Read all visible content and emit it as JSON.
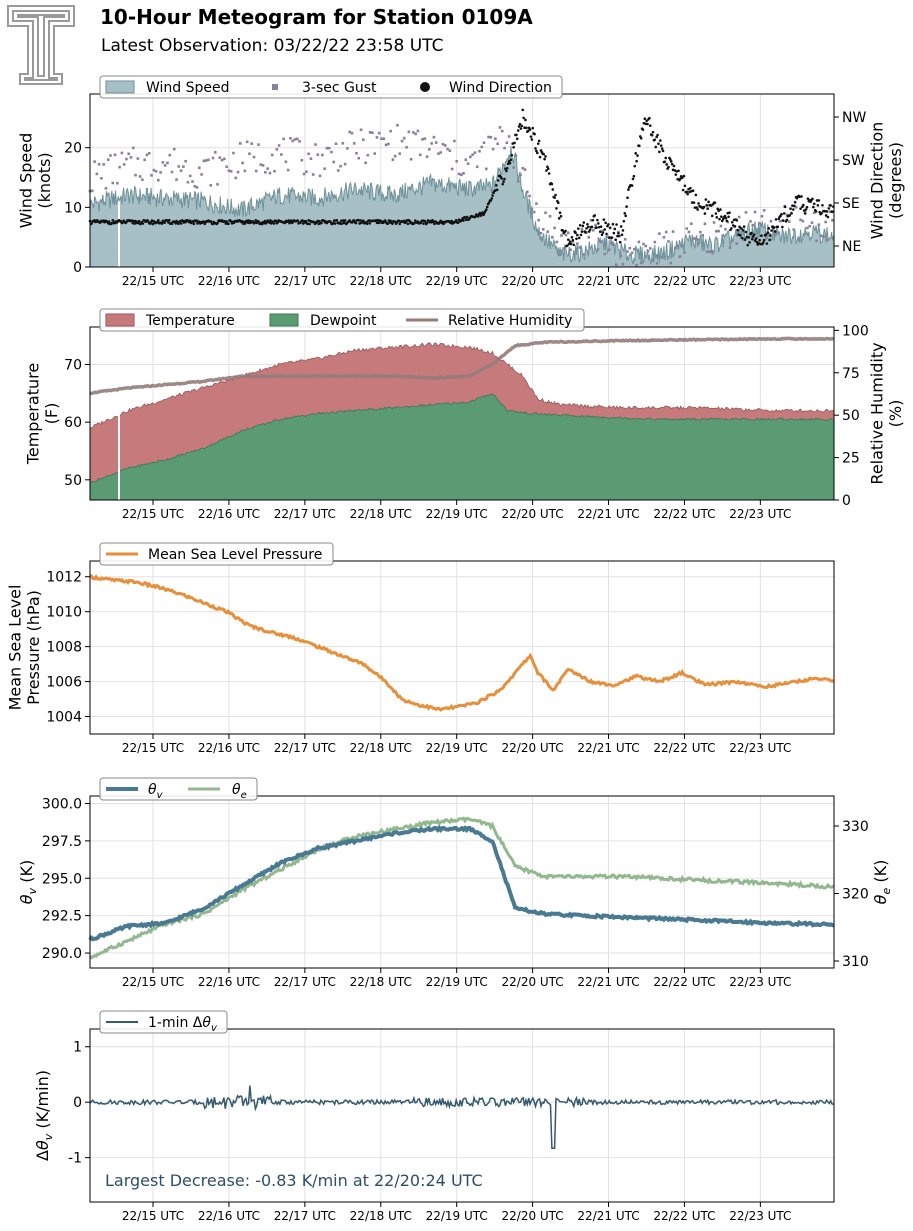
{
  "header": {
    "title": "10-Hour Meteogram for Station 0109A",
    "subtitle": "Latest Observation: 03/22/22 23:58 UTC"
  },
  "x_ticks": [
    "22/15 UTC",
    "22/16 UTC",
    "22/17 UTC",
    "22/18 UTC",
    "22/19 UTC",
    "22/20 UTC",
    "22/21 UTC",
    "22/22 UTC",
    "22/23 UTC"
  ],
  "colors": {
    "wind_fill": "#a7c0c6",
    "wind_line": "#6e9199",
    "gust": "#8c7f9e",
    "direction": "#111111",
    "temperature": "#c77a7c",
    "dewpoint": "#5a9b74",
    "rh": "#957b7b",
    "pressure": "#e78f3a",
    "theta_v": "#4a7a92",
    "theta_e": "#93b88f",
    "dtheta": "#355a6e",
    "annotation": "#2c4f6b"
  },
  "chart_data": [
    {
      "type": "area",
      "panel": "wind",
      "xrange": [
        "22/14:10 UTC",
        "22/23:58 UTC"
      ],
      "ylabel": "Wind Speed\n(knots)",
      "ylim": [
        0,
        29
      ],
      "yticks": [
        0,
        10,
        20
      ],
      "y2label": "Wind Direction\n(degrees)",
      "y2ticks": [
        "NE",
        "SE",
        "SW",
        "NW"
      ],
      "legend": [
        "Wind Speed",
        "3-sec Gust",
        "Wind Direction"
      ],
      "legend_placement": "top-left",
      "grid": true,
      "series": [
        {
          "name": "Wind Speed",
          "kind": "area",
          "values": [
            [
              0.0,
              10.5
            ],
            [
              0.5,
              12
            ],
            [
              1.0,
              11.5
            ],
            [
              1.5,
              11
            ],
            [
              2.0,
              9.5
            ],
            [
              2.5,
              12
            ],
            [
              3.0,
              11.5
            ],
            [
              3.5,
              13
            ],
            [
              4.0,
              12
            ],
            [
              4.5,
              14
            ],
            [
              5.0,
              13
            ],
            [
              5.3,
              13.5
            ],
            [
              5.55,
              20
            ],
            [
              5.7,
              13
            ],
            [
              5.9,
              6
            ],
            [
              6.2,
              2
            ],
            [
              6.5,
              2.5
            ],
            [
              6.8,
              4
            ],
            [
              7.1,
              2
            ],
            [
              7.4,
              2
            ],
            [
              7.6,
              2.5
            ],
            [
              7.9,
              4.5
            ],
            [
              8.2,
              3.5
            ],
            [
              8.5,
              5
            ],
            [
              8.8,
              6.5
            ],
            [
              9.1,
              5
            ],
            [
              9.5,
              6
            ],
            [
              9.8,
              5
            ]
          ]
        },
        {
          "name": "3-sec Gust",
          "kind": "scatter",
          "values": [
            [
              0.0,
              15
            ],
            [
              0.5,
              17
            ],
            [
              1.0,
              17.5
            ],
            [
              1.5,
              16
            ],
            [
              2.0,
              18
            ],
            [
              2.5,
              19
            ],
            [
              3.0,
              18
            ],
            [
              3.5,
              20
            ],
            [
              4.0,
              21
            ],
            [
              4.5,
              20
            ],
            [
              5.0,
              17
            ],
            [
              5.5,
              22
            ],
            [
              5.8,
              11
            ],
            [
              6.2,
              4
            ],
            [
              6.6,
              5
            ],
            [
              7.0,
              3
            ],
            [
              7.4,
              2.5
            ],
            [
              7.8,
              4
            ],
            [
              8.2,
              5
            ],
            [
              8.6,
              7
            ],
            [
              9.0,
              7
            ],
            [
              9.4,
              7.5
            ],
            [
              9.8,
              6.5
            ]
          ]
        },
        {
          "name": "Wind Direction",
          "kind": "scatter",
          "values": [
            [
              0.0,
              "E"
            ],
            [
              1.0,
              "E"
            ],
            [
              2.0,
              "E"
            ],
            [
              3.0,
              "E"
            ],
            [
              4.0,
              "E"
            ],
            [
              4.8,
              "E"
            ],
            [
              5.2,
              "ESE"
            ],
            [
              5.5,
              "SSW"
            ],
            [
              5.7,
              "NW"
            ],
            [
              6.0,
              "SW"
            ],
            [
              6.3,
              "NE"
            ],
            [
              6.6,
              "E"
            ],
            [
              7.0,
              "ENE"
            ],
            [
              7.3,
              "NW"
            ],
            [
              7.6,
              "SW"
            ],
            [
              8.0,
              "SE"
            ],
            [
              8.3,
              "ESE"
            ],
            [
              8.8,
              "NE"
            ],
            [
              9.3,
              "SE"
            ],
            [
              9.9,
              "ESE"
            ]
          ]
        }
      ]
    },
    {
      "type": "area",
      "panel": "thermo",
      "xrange": [
        "22/14:10 UTC",
        "22/23:58 UTC"
      ],
      "ylabel": "Temperature\n(F)",
      "ylim": [
        46.5,
        76.5
      ],
      "yticks": [
        50,
        60,
        70
      ],
      "y2label": "Relative Humidity\n(%)",
      "y2lim": [
        0,
        102
      ],
      "y2ticks": [
        0,
        25,
        50,
        75,
        100
      ],
      "legend": [
        "Temperature",
        "Dewpoint",
        "Relative Humidity"
      ],
      "legend_placement": "top-left",
      "grid": true,
      "series": [
        {
          "name": "Temperature",
          "values": [
            [
              0.0,
              59
            ],
            [
              0.5,
              62
            ],
            [
              1.0,
              64
            ],
            [
              1.5,
              66
            ],
            [
              2.0,
              68
            ],
            [
              2.5,
              70
            ],
            [
              3.0,
              71
            ],
            [
              3.5,
              72.5
            ],
            [
              4.0,
              73
            ],
            [
              4.5,
              73.5
            ],
            [
              5.0,
              73
            ],
            [
              5.3,
              72
            ],
            [
              5.7,
              68
            ],
            [
              5.9,
              64
            ],
            [
              6.2,
              63
            ],
            [
              7.0,
              62.5
            ],
            [
              8.0,
              62.5
            ],
            [
              9.0,
              62
            ],
            [
              9.8,
              62
            ]
          ]
        },
        {
          "name": "Dewpoint",
          "values": [
            [
              0.0,
              49.5
            ],
            [
              0.5,
              52
            ],
            [
              1.0,
              53.5
            ],
            [
              1.5,
              55.5
            ],
            [
              2.0,
              58.5
            ],
            [
              2.5,
              60.5
            ],
            [
              3.0,
              61.5
            ],
            [
              3.5,
              62
            ],
            [
              4.0,
              62.5
            ],
            [
              4.5,
              63
            ],
            [
              5.0,
              63.5
            ],
            [
              5.3,
              65
            ],
            [
              5.5,
              62
            ],
            [
              5.8,
              61.5
            ],
            [
              6.5,
              61
            ],
            [
              7.5,
              60.5
            ],
            [
              8.5,
              60.5
            ],
            [
              9.8,
              60.5
            ]
          ]
        },
        {
          "name": "Relative Humidity",
          "values": [
            [
              0.0,
              63
            ],
            [
              0.5,
              66
            ],
            [
              1.0,
              68
            ],
            [
              1.5,
              70
            ],
            [
              2.0,
              73
            ],
            [
              2.5,
              73
            ],
            [
              3.0,
              73
            ],
            [
              3.5,
              73
            ],
            [
              4.0,
              73
            ],
            [
              4.5,
              72
            ],
            [
              5.0,
              73
            ],
            [
              5.3,
              80
            ],
            [
              5.6,
              91
            ],
            [
              6.0,
              93
            ],
            [
              7.0,
              94
            ],
            [
              8.0,
              94.5
            ],
            [
              9.0,
              95
            ],
            [
              9.8,
              95
            ]
          ]
        }
      ]
    },
    {
      "type": "line",
      "panel": "pressure",
      "xrange": [
        "22/14:10 UTC",
        "22/23:58 UTC"
      ],
      "ylabel": "Mean Sea Level\nPressure (hPa)",
      "ylim": [
        1003,
        1012.9
      ],
      "yticks": [
        1004,
        1006,
        1008,
        1010,
        1012
      ],
      "legend": [
        "Mean Sea Level Pressure"
      ],
      "legend_placement": "top-left",
      "grid": true,
      "series": [
        {
          "name": "Mean Sea Level Pressure",
          "values": [
            [
              0.0,
              1012
            ],
            [
              0.3,
              1011.8
            ],
            [
              0.6,
              1011.7
            ],
            [
              0.9,
              1011.4
            ],
            [
              1.2,
              1011
            ],
            [
              1.5,
              1010.5
            ],
            [
              1.8,
              1010
            ],
            [
              2.1,
              1009.2
            ],
            [
              2.4,
              1008.8
            ],
            [
              2.7,
              1008.5
            ],
            [
              3.0,
              1008
            ],
            [
              3.3,
              1007.5
            ],
            [
              3.6,
              1007
            ],
            [
              3.9,
              1006
            ],
            [
              4.1,
              1005
            ],
            [
              4.3,
              1004.7
            ],
            [
              4.6,
              1004.4
            ],
            [
              4.9,
              1004.6
            ],
            [
              5.1,
              1004.8
            ],
            [
              5.4,
              1005.5
            ],
            [
              5.6,
              1006.5
            ],
            [
              5.8,
              1007.5
            ],
            [
              5.9,
              1006.5
            ],
            [
              6.1,
              1005.5
            ],
            [
              6.3,
              1006.7
            ],
            [
              6.6,
              1006
            ],
            [
              6.9,
              1005.8
            ],
            [
              7.2,
              1006.3
            ],
            [
              7.5,
              1006
            ],
            [
              7.8,
              1006.5
            ],
            [
              8.1,
              1005.8
            ],
            [
              8.5,
              1006
            ],
            [
              8.9,
              1005.7
            ],
            [
              9.3,
              1006
            ],
            [
              9.6,
              1006.2
            ],
            [
              9.8,
              1006
            ]
          ]
        }
      ]
    },
    {
      "type": "line",
      "panel": "theta",
      "xrange": [
        "22/14:10 UTC",
        "22/23:58 UTC"
      ],
      "ylabel": "θv (K)",
      "ylim": [
        289,
        300.5
      ],
      "yticks": [
        290.0,
        292.5,
        295.0,
        297.5,
        300.0
      ],
      "y2label": "θe (K)",
      "y2ticks": [
        310,
        320,
        330
      ],
      "legend": [
        "θv",
        "θe"
      ],
      "legend_placement": "top-left",
      "grid": true,
      "series": [
        {
          "name": "θv",
          "values": [
            [
              0.0,
              290.9
            ],
            [
              0.5,
              291.8
            ],
            [
              1.0,
              292.0
            ],
            [
              1.5,
              293.0
            ],
            [
              2.0,
              294.5
            ],
            [
              2.5,
              296.0
            ],
            [
              3.0,
              297.0
            ],
            [
              3.5,
              297.5
            ],
            [
              4.0,
              298.0
            ],
            [
              4.5,
              298.3
            ],
            [
              5.0,
              298.3
            ],
            [
              5.3,
              297.5
            ],
            [
              5.6,
              293.0
            ],
            [
              6.0,
              292.6
            ],
            [
              7.0,
              292.4
            ],
            [
              8.0,
              292.2
            ],
            [
              9.0,
              292.0
            ],
            [
              9.8,
              291.9
            ]
          ]
        },
        {
          "name": "θe",
          "values": [
            [
              0.0,
              310.5
            ],
            [
              0.5,
              313.0
            ],
            [
              1.0,
              315.5
            ],
            [
              1.5,
              317.0
            ],
            [
              2.0,
              320.5
            ],
            [
              2.5,
              323.5
            ],
            [
              3.0,
              326.5
            ],
            [
              3.5,
              328.5
            ],
            [
              4.0,
              329.5
            ],
            [
              4.5,
              330.5
            ],
            [
              5.0,
              331.0
            ],
            [
              5.3,
              330.0
            ],
            [
              5.6,
              324.0
            ],
            [
              6.0,
              322.5
            ],
            [
              7.0,
              322.5
            ],
            [
              8.0,
              322.0
            ],
            [
              9.0,
              321.5
            ],
            [
              9.8,
              321.0
            ]
          ]
        }
      ]
    },
    {
      "type": "line",
      "panel": "dtheta",
      "xrange": [
        "22/14:10 UTC",
        "22/23:58 UTC"
      ],
      "ylabel": "Δθv (K/min)",
      "ylim": [
        -1.8,
        1.32
      ],
      "yticks": [
        -1,
        0,
        1
      ],
      "legend": [
        "1-min Δθv"
      ],
      "legend_placement": "top-left",
      "grid": true,
      "annotation": "Largest Decrease: -0.83 K/min at 22/20:24 UTC",
      "series": [
        {
          "name": "1-min Δθv",
          "values": [
            [
              0.0,
              0.0
            ],
            [
              2.0,
              0.3
            ],
            [
              2.1,
              -0.15
            ],
            [
              5.6,
              0.1
            ],
            [
              6.1,
              -0.83
            ],
            [
              6.3,
              0.05
            ],
            [
              9.8,
              0.0
            ]
          ]
        }
      ]
    }
  ]
}
